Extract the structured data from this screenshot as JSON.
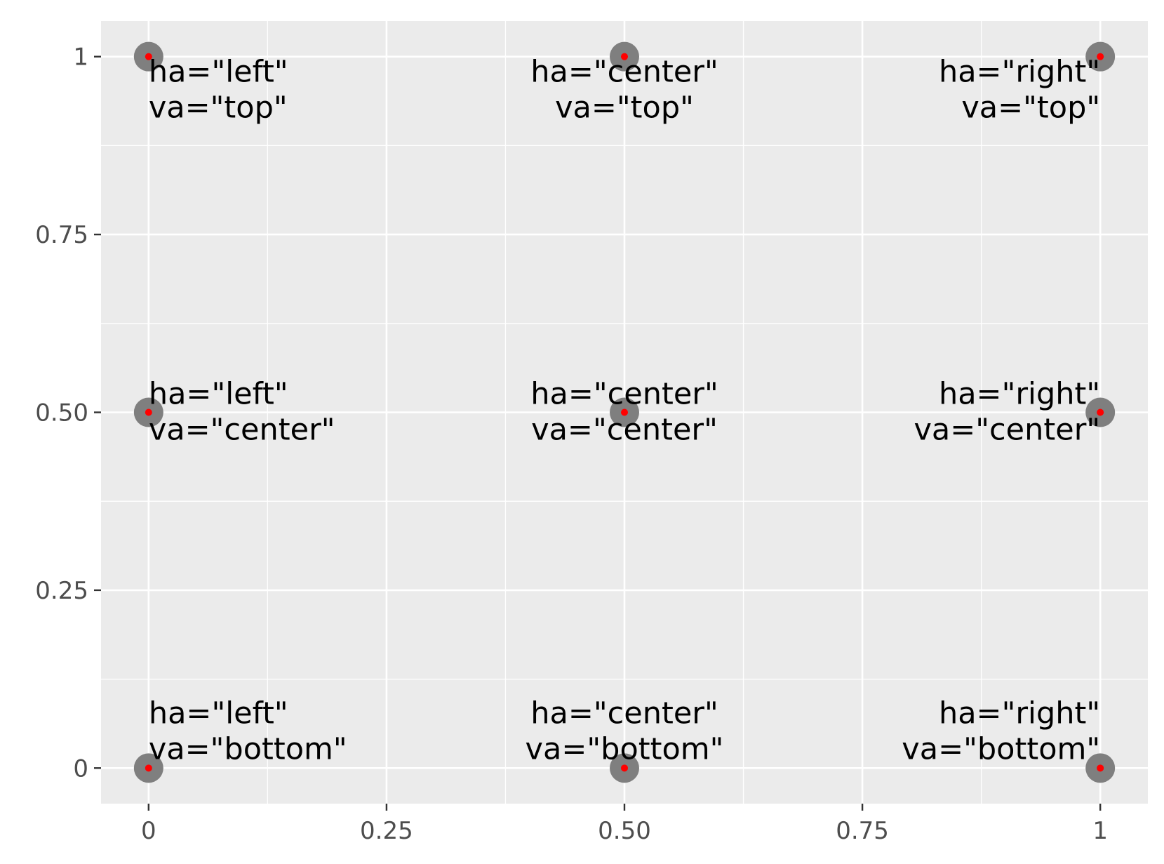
{
  "chart_data": {
    "type": "scatter",
    "xlim": [
      -0.05,
      1.05
    ],
    "ylim": [
      -0.05,
      1.05
    ],
    "x_ticks": [
      {
        "value": 0,
        "label": "0"
      },
      {
        "value": 0.25,
        "label": "0.25"
      },
      {
        "value": 0.5,
        "label": "0.50"
      },
      {
        "value": 0.75,
        "label": "0.75"
      },
      {
        "value": 1,
        "label": "1"
      }
    ],
    "y_ticks": [
      {
        "value": 0,
        "label": "0"
      },
      {
        "value": 0.25,
        "label": "0.25"
      },
      {
        "value": 0.5,
        "label": "0.50"
      },
      {
        "value": 0.75,
        "label": "0.75"
      },
      {
        "value": 1,
        "label": "1"
      }
    ],
    "grid": true,
    "colors": {
      "panel": "#ebebeb",
      "grid": "#ffffff",
      "point": "#7f7f7f",
      "center": "#ff0000",
      "tick": "#4d4d4d",
      "text": "#000000"
    },
    "points": [
      {
        "x": 0,
        "y": 1,
        "ha": "left",
        "va": "top",
        "lines": [
          "ha=\"left\"",
          "va=\"top\""
        ]
      },
      {
        "x": 0.5,
        "y": 1,
        "ha": "center",
        "va": "top",
        "lines": [
          "ha=\"center\"",
          "va=\"top\""
        ]
      },
      {
        "x": 1,
        "y": 1,
        "ha": "right",
        "va": "top",
        "lines": [
          "ha=\"right\"",
          "va=\"top\""
        ]
      },
      {
        "x": 0,
        "y": 0.5,
        "ha": "left",
        "va": "center",
        "lines": [
          "ha=\"left\"",
          "va=\"center\""
        ]
      },
      {
        "x": 0.5,
        "y": 0.5,
        "ha": "center",
        "va": "center",
        "lines": [
          "ha=\"center\"",
          "va=\"center\""
        ]
      },
      {
        "x": 1,
        "y": 0.5,
        "ha": "right",
        "va": "center",
        "lines": [
          "ha=\"right\"",
          "va=\"center\""
        ]
      },
      {
        "x": 0,
        "y": 0,
        "ha": "left",
        "va": "bottom",
        "lines": [
          "ha=\"left\"",
          "va=\"bottom\""
        ]
      },
      {
        "x": 0.5,
        "y": 0,
        "ha": "center",
        "va": "bottom",
        "lines": [
          "ha=\"center\"",
          "va=\"bottom\""
        ]
      },
      {
        "x": 1,
        "y": 0,
        "ha": "right",
        "va": "bottom",
        "lines": [
          "ha=\"right\"",
          "va=\"bottom\""
        ]
      }
    ]
  }
}
